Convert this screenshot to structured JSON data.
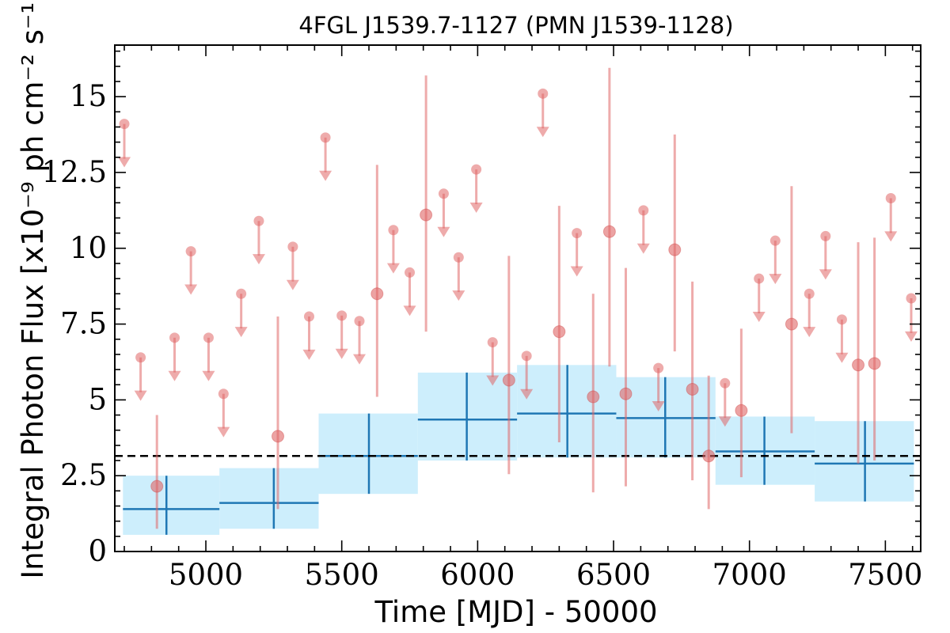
{
  "chart_data": {
    "type": "scatter",
    "title": "4FGL J1539.7-1127 (PMN J1539-1128)",
    "xlabel": "Time [MJD] - 50000",
    "ylabel": "Integral Photon Flux [x10⁻⁹ ph cm⁻² s⁻¹]",
    "xlim": [
      4665,
      7630
    ],
    "ylim": [
      0,
      16.7
    ],
    "x_ticks": [
      5000,
      5500,
      6000,
      6500,
      7000,
      7500
    ],
    "x_tick_labels": [
      "5000",
      "5500",
      "6000",
      "6500",
      "7000",
      "7500"
    ],
    "y_ticks": [
      0,
      2.5,
      5,
      7.5,
      10,
      12.5,
      15
    ],
    "y_tick_labels": [
      "0",
      "2.5",
      "5",
      "7.5",
      "10",
      "12.5",
      "15"
    ],
    "grid": false,
    "mean_flux": 3.15,
    "colors": {
      "points": "#e06666",
      "long_bins": "#1f77b4",
      "long_bins_band": "#cdeefc",
      "mean_line": "#000000"
    },
    "upper_limits": [
      {
        "x": 4700,
        "y": 14.1
      },
      {
        "x": 4760,
        "y": 6.4
      },
      {
        "x": 4885,
        "y": 7.05
      },
      {
        "x": 4945,
        "y": 9.9
      },
      {
        "x": 5010,
        "y": 7.05
      },
      {
        "x": 5065,
        "y": 5.2
      },
      {
        "x": 5130,
        "y": 8.5
      },
      {
        "x": 5195,
        "y": 10.9
      },
      {
        "x": 5320,
        "y": 10.05
      },
      {
        "x": 5380,
        "y": 7.75
      },
      {
        "x": 5440,
        "y": 13.65
      },
      {
        "x": 5500,
        "y": 7.78
      },
      {
        "x": 5565,
        "y": 7.6
      },
      {
        "x": 5690,
        "y": 10.6
      },
      {
        "x": 5750,
        "y": 9.2
      },
      {
        "x": 5875,
        "y": 11.8
      },
      {
        "x": 5930,
        "y": 9.7
      },
      {
        "x": 5995,
        "y": 12.6
      },
      {
        "x": 6055,
        "y": 6.9
      },
      {
        "x": 6180,
        "y": 6.45
      },
      {
        "x": 6240,
        "y": 15.1
      },
      {
        "x": 6365,
        "y": 10.5
      },
      {
        "x": 6610,
        "y": 11.25
      },
      {
        "x": 6665,
        "y": 6.05
      },
      {
        "x": 6910,
        "y": 5.55
      },
      {
        "x": 7035,
        "y": 9.0
      },
      {
        "x": 7095,
        "y": 10.25
      },
      {
        "x": 7220,
        "y": 8.5
      },
      {
        "x": 7280,
        "y": 10.4
      },
      {
        "x": 7340,
        "y": 7.65
      },
      {
        "x": 7520,
        "y": 11.65
      },
      {
        "x": 7595,
        "y": 8.35
      }
    ],
    "detections": [
      {
        "x": 4820,
        "y": 2.15,
        "lo": 0.75,
        "hi": 4.5
      },
      {
        "x": 5265,
        "y": 3.8,
        "lo": 1.4,
        "hi": 7.75
      },
      {
        "x": 5630,
        "y": 8.5,
        "lo": 5.1,
        "hi": 12.75
      },
      {
        "x": 5810,
        "y": 11.1,
        "lo": 7.25,
        "hi": 15.7
      },
      {
        "x": 6115,
        "y": 5.65,
        "lo": 2.55,
        "hi": 9.75
      },
      {
        "x": 6300,
        "y": 7.25,
        "lo": 3.6,
        "hi": 11.4
      },
      {
        "x": 6425,
        "y": 5.1,
        "lo": 1.95,
        "hi": 8.5
      },
      {
        "x": 6485,
        "y": 10.55,
        "lo": 6.1,
        "hi": 15.95
      },
      {
        "x": 6545,
        "y": 5.2,
        "lo": 2.15,
        "hi": 9.35
      },
      {
        "x": 6725,
        "y": 9.95,
        "lo": 6.6,
        "hi": 13.75
      },
      {
        "x": 6790,
        "y": 5.35,
        "lo": 2.35,
        "hi": 8.9
      },
      {
        "x": 6850,
        "y": 3.15,
        "lo": 1.4,
        "hi": 5.8
      },
      {
        "x": 6970,
        "y": 4.65,
        "lo": 2.45,
        "hi": 7.35
      },
      {
        "x": 7155,
        "y": 7.5,
        "lo": 3.9,
        "hi": 12.05
      },
      {
        "x": 7400,
        "y": 6.15,
        "lo": 2.9,
        "hi": 10.2
      },
      {
        "x": 7460,
        "y": 6.2,
        "lo": 3.0,
        "hi": 10.35
      }
    ],
    "long_bins": [
      {
        "x0": 4695,
        "x1": 5050,
        "xc": 4855,
        "y": 1.4,
        "lo": 0.55,
        "hi": 2.5
      },
      {
        "x0": 5050,
        "x1": 5415,
        "xc": 5250,
        "y": 1.6,
        "lo": 0.75,
        "hi": 2.75
      },
      {
        "x0": 5415,
        "x1": 5780,
        "xc": 5600,
        "y": 3.15,
        "lo": 1.9,
        "hi": 4.55
      },
      {
        "x0": 5780,
        "x1": 6145,
        "xc": 5960,
        "y": 4.35,
        "lo": 3.0,
        "hi": 5.9
      },
      {
        "x0": 6145,
        "x1": 6510,
        "xc": 6330,
        "y": 4.55,
        "lo": 3.1,
        "hi": 6.15
      },
      {
        "x0": 6510,
        "x1": 6875,
        "xc": 6690,
        "y": 4.4,
        "lo": 3.1,
        "hi": 5.75
      },
      {
        "x0": 6875,
        "x1": 7240,
        "xc": 7055,
        "y": 3.3,
        "lo": 2.2,
        "hi": 4.45
      },
      {
        "x0": 7240,
        "x1": 7605,
        "xc": 7425,
        "y": 2.9,
        "lo": 1.65,
        "hi": 4.3
      }
    ]
  }
}
